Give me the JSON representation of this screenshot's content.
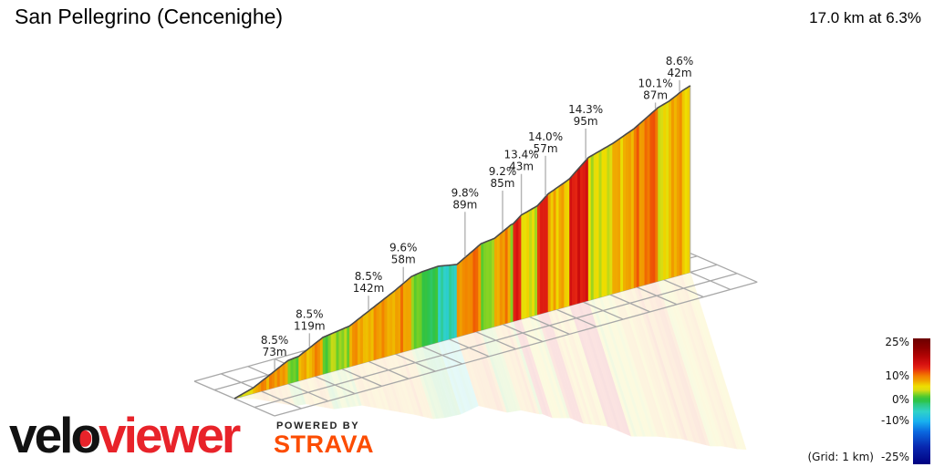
{
  "header": {
    "title": "San Pellegrino (Cencenighe)",
    "summary": "17.0 km at 6.3%"
  },
  "legend": {
    "ticks": [
      "25%",
      "10%",
      "0%",
      "-10%",
      "-25%"
    ],
    "note": "(Grid: 1 km)"
  },
  "branding": {
    "velo": "velo",
    "viewer": "viewer",
    "powered_by": "POWERED BY",
    "strava": "STRAVA",
    "veloviewer_red": "#E8232A",
    "strava_orange": "#FC4C02"
  },
  "chart_data": {
    "type": "area",
    "title": "San Pellegrino (Cencenighe)",
    "distance_km": 17.0,
    "avg_gradient_pct": 6.3,
    "grid_cell_km": 1,
    "legend_ticks_pct": [
      25,
      10,
      0,
      -10,
      -25
    ],
    "legend_range_pct": [
      -25,
      25
    ],
    "colormap": [
      [
        25,
        "#6b0000"
      ],
      [
        21,
        "#8f0000"
      ],
      [
        18,
        "#b20404"
      ],
      [
        15,
        "#d41010"
      ],
      [
        13,
        "#e62812"
      ],
      [
        11.5,
        "#ee5505"
      ],
      [
        10,
        "#f28000"
      ],
      [
        9,
        "#f19300"
      ],
      [
        8,
        "#f0a800"
      ],
      [
        7,
        "#efc400"
      ],
      [
        6,
        "#eede00"
      ],
      [
        4.5,
        "#dcdc12"
      ],
      [
        3,
        "#8ad322"
      ],
      [
        2,
        "#55ca2e"
      ],
      [
        1,
        "#35c341"
      ],
      [
        0,
        "#2ec448"
      ],
      [
        -1,
        "#2fc878"
      ],
      [
        -4,
        "#2fd2c8"
      ],
      [
        -8,
        "#18b0f0"
      ],
      [
        -12,
        "#0a6ae0"
      ],
      [
        -18,
        "#0828b0"
      ],
      [
        -25,
        "#000080"
      ]
    ],
    "segments_km_from_to_gradient_pct": [
      [
        0,
        0.75,
        5.0
      ],
      [
        0.75,
        2.0,
        8.5
      ],
      [
        2.0,
        2.4,
        2.0
      ],
      [
        2.4,
        3.3,
        8.5
      ],
      [
        3.3,
        4.3,
        2.5
      ],
      [
        4.3,
        6.0,
        8.5
      ],
      [
        6.0,
        6.6,
        9.6
      ],
      [
        6.6,
        7.0,
        3.0
      ],
      [
        7.0,
        7.6,
        1.0
      ],
      [
        7.6,
        8.3,
        -3.0
      ],
      [
        8.3,
        9.2,
        9.8
      ],
      [
        9.2,
        9.7,
        2.0
      ],
      [
        9.7,
        10.3,
        9.2
      ],
      [
        10.3,
        10.45,
        4.0
      ],
      [
        10.45,
        10.75,
        13.4
      ],
      [
        10.75,
        11.26,
        5.0
      ],
      [
        11.26,
        11.67,
        14.0
      ],
      [
        11.67,
        12.3,
        7.0
      ],
      [
        12.3,
        12.5,
        8.0
      ],
      [
        12.5,
        13.2,
        14.3
      ],
      [
        13.2,
        14.1,
        5.0
      ],
      [
        14.1,
        14.9,
        7.0
      ],
      [
        14.9,
        15.8,
        10.1
      ],
      [
        15.8,
        16.2,
        5.0
      ],
      [
        16.2,
        16.7,
        8.6
      ],
      [
        16.7,
        17.0,
        6.0
      ]
    ],
    "annotations": [
      {
        "gradient": "8.5%",
        "climb": "73m",
        "km": 1.5
      },
      {
        "gradient": "8.5%",
        "climb": "119m",
        "km": 2.8
      },
      {
        "gradient": "8.5%",
        "climb": "142m",
        "km": 5.0
      },
      {
        "gradient": "9.6%",
        "climb": "58m",
        "km": 6.3
      },
      {
        "gradient": "9.8%",
        "climb": "89m",
        "km": 8.6
      },
      {
        "gradient": "9.2%",
        "climb": "85m",
        "km": 10.0
      },
      {
        "gradient": "13.4%",
        "climb": "43m",
        "km": 10.7
      },
      {
        "gradient": "14.0%",
        "climb": "57m",
        "km": 11.6
      },
      {
        "gradient": "14.3%",
        "climb": "95m",
        "km": 13.1
      },
      {
        "gradient": "10.1%",
        "climb": "87m",
        "km": 15.7
      },
      {
        "gradient": "8.6%",
        "climb": "42m",
        "km": 16.6
      }
    ]
  }
}
